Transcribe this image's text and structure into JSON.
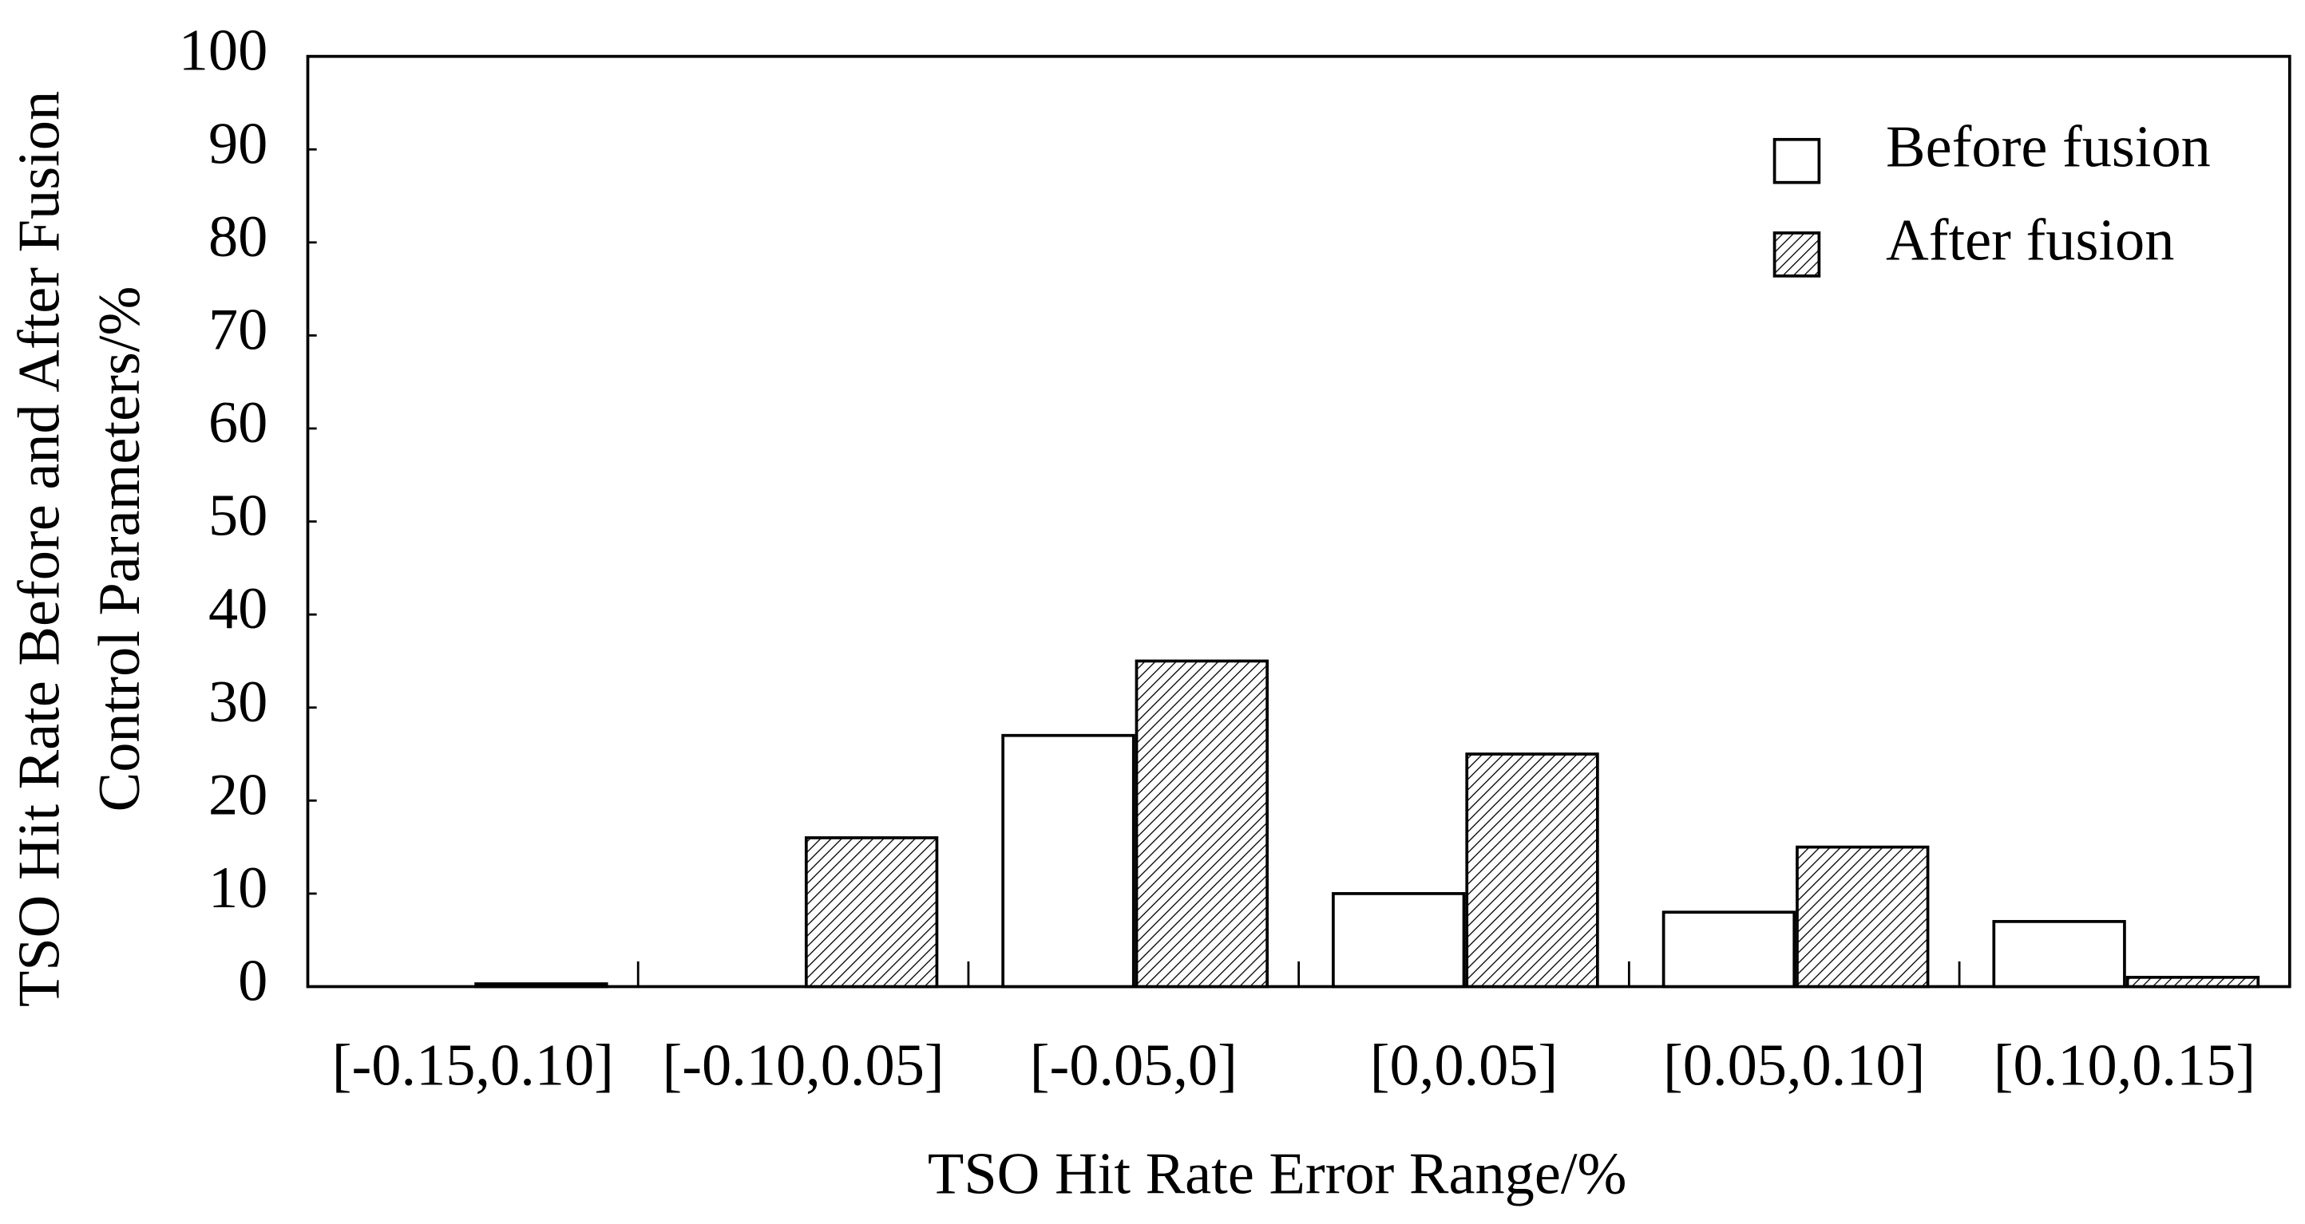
{
  "chart_data": {
    "type": "bar",
    "x_label": "TSO Hit Rate Error Range/%",
    "y_label": [
      "TSO Hit Rate Before and After Fusion",
      "Control Parameters/%"
    ],
    "categories": [
      "[-0.15,0.10]",
      "[-0.10,0.05]",
      "[-0.05,0]",
      "[0,0.05]",
      "[0.05,0.10]",
      "[0.10,0.15]"
    ],
    "series": [
      {
        "name": "Before fusion",
        "color": "#ffffff",
        "pattern": "solid",
        "values": [
          0,
          0,
          27,
          10,
          8,
          7
        ]
      },
      {
        "name": "After fusion",
        "color": "#ffffff",
        "pattern": "hatch",
        "values": [
          0.3,
          16,
          35,
          25,
          15,
          1
        ]
      }
    ],
    "ylim": [
      0,
      100
    ],
    "yticks": [
      0,
      10,
      20,
      30,
      40,
      50,
      60,
      70,
      80,
      90,
      100
    ],
    "legend": "top-right"
  }
}
